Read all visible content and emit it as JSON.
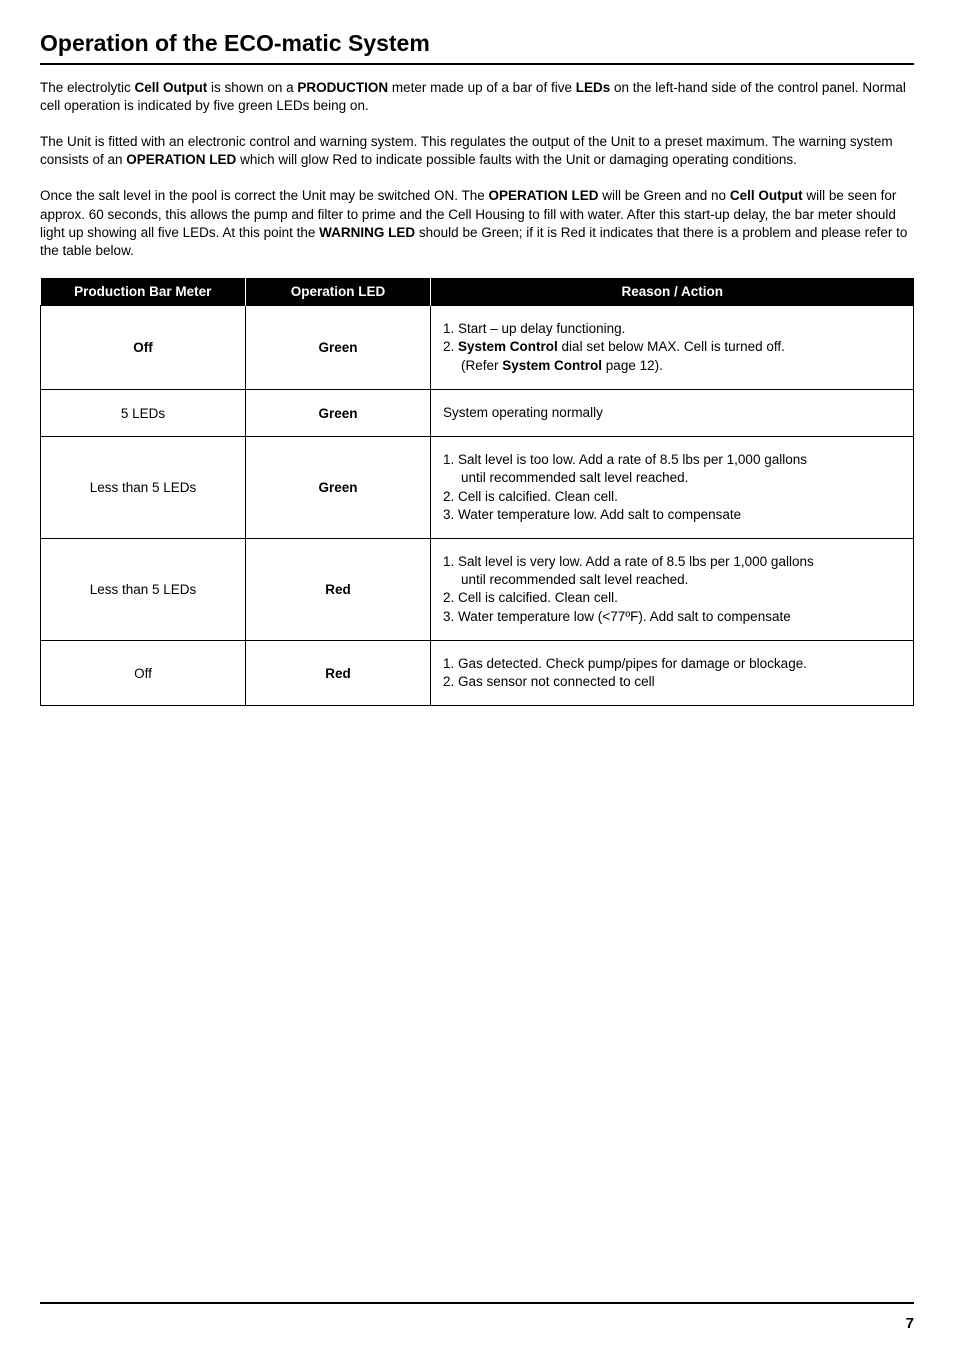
{
  "title": "Operation of the ECO-matic System",
  "para1_a": "The electrolytic ",
  "para1_b": "Cell Output",
  "para1_c": " is shown on a ",
  "para1_d": "PRODUCTION",
  "para1_e": " meter made up of a bar of five ",
  "para1_f": "LEDs",
  "para1_g": " on the left-hand side of the control panel. Normal cell operation is indicated by five green LEDs being on.",
  "para2_a": "The Unit is fitted with an electronic control and warning system. This regulates the output of the Unit to a preset maximum. The warning system consists of an ",
  "para2_b": "OPERATION LED",
  "para2_c": " which will glow Red to indicate possible faults with the Unit or damaging operating conditions.",
  "para3_a": "Once the salt level in the pool is correct the Unit may be switched ON. The ",
  "para3_b": "OPERATION LED",
  "para3_c": " will be Green and no ",
  "para3_d": "Cell Output",
  "para3_e": " will be seen for approx. 60 seconds, this allows the pump and filter to prime and the Cell Housing to fill with water. After this start-up delay, the bar meter should light up showing all five LEDs. At this point the ",
  "para3_f": "WARNING LED",
  "para3_g": " should be Green; if it is Red it indicates that there is a problem and please refer to the table below.",
  "table": {
    "headers": {
      "c1": "Production Bar Meter",
      "c2": "Operation LED",
      "c3": "Reason / Action"
    },
    "rows": [
      {
        "prod": "Off",
        "prod_bold": true,
        "op": "Green",
        "op_bold": true,
        "reason_lines": [
          {
            "t": "1. Start – up delay functioning."
          },
          {
            "t": "2. ",
            "b1": "System Control",
            "t2": " dial set below MAX. Cell is turned off."
          },
          {
            "indent": true,
            "t": "(Refer ",
            "b1": "System Control",
            "t2": " page 12)."
          }
        ]
      },
      {
        "prod": "5 LEDs",
        "prod_bold": false,
        "op": "Green",
        "op_bold": true,
        "reason_lines": [
          {
            "t": "System operating normally"
          }
        ]
      },
      {
        "prod": "Less than 5 LEDs",
        "prod_bold": false,
        "op": "Green",
        "op_bold": true,
        "reason_lines": [
          {
            "t": "1. Salt level is too low. Add a rate of 8.5 lbs per 1,000 gallons"
          },
          {
            "indent": true,
            "t": "until recommended salt level reached."
          },
          {
            "t": "2. Cell is calcified. Clean cell."
          },
          {
            "t": "3. Water temperature low. Add salt to compensate"
          }
        ]
      },
      {
        "prod": "Less than 5 LEDs",
        "prod_bold": false,
        "op": "Red",
        "op_bold": true,
        "reason_lines": [
          {
            "t": "1. Salt level is very low.  Add a rate of 8.5 lbs per 1,000 gallons"
          },
          {
            "indent": true,
            "t": "until recommended salt level reached."
          },
          {
            "t": "2. Cell is calcified.  Clean cell."
          },
          {
            "t": "3. Water temperature low (<77ºF). Add salt to compensate"
          }
        ]
      },
      {
        "prod": "Off",
        "prod_bold": false,
        "op": "Red",
        "op_bold": true,
        "reason_lines": [
          {
            "t": "1. Gas detected. Check pump/pipes for damage or blockage."
          },
          {
            "t": "2. Gas sensor not connected to cell"
          }
        ]
      }
    ]
  },
  "page_number": "7"
}
